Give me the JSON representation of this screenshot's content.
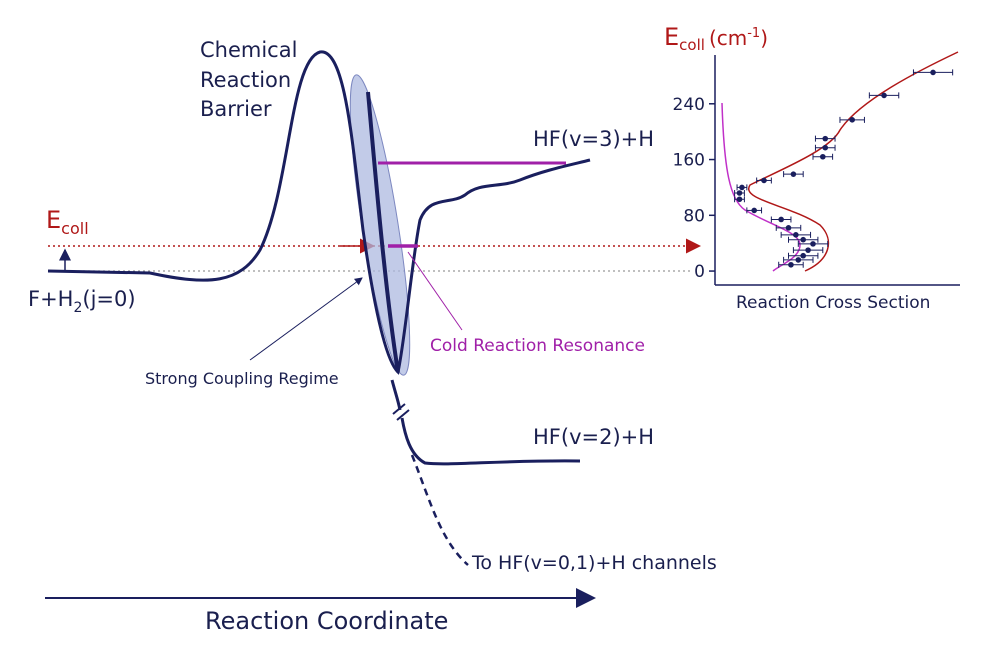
{
  "labels": {
    "barrier": [
      "Chemical",
      "Reaction",
      "Barrier"
    ],
    "hf_v3": "HF(v=3)+H",
    "ecoll": {
      "main": "E",
      "sub": "coll"
    },
    "reactant": {
      "a": "F+H",
      "sub": "2",
      "b": "(j=0)"
    },
    "strong_coupling": "Strong Coupling Regime",
    "resonance": "Cold Reaction Resonance",
    "hf_v2": "HF(v=2)+H",
    "hf_v01": "To HF(v=0,1)+H channels",
    "x_axis": "Reaction Coordinate"
  },
  "inset": {
    "type": "scatter",
    "y_label": {
      "main": "E",
      "sub": "coll",
      "unit_a": "(cm",
      "sup": "-1",
      "unit_b": ")"
    },
    "x_label": "Reaction Cross Section",
    "ylim": [
      -20,
      310
    ],
    "yticks": [
      0,
      80,
      160,
      240
    ],
    "xlim": [
      0,
      100
    ],
    "x": [
      89,
      69,
      56,
      45,
      45,
      44,
      32,
      20,
      11,
      10,
      10,
      16,
      27,
      30,
      33,
      36,
      40,
      38,
      36,
      34,
      31
    ],
    "values": [
      285,
      252,
      217,
      190,
      177,
      164,
      139,
      130,
      120,
      112,
      103,
      87,
      74,
      62,
      52,
      45,
      39,
      30,
      22,
      16,
      9
    ],
    "xerr": [
      8,
      6,
      5,
      4,
      4,
      4,
      4,
      3,
      2,
      2,
      2,
      3,
      4,
      5,
      6,
      6,
      6,
      6,
      6,
      6,
      5
    ],
    "color": "#1a1f5e"
  }
}
